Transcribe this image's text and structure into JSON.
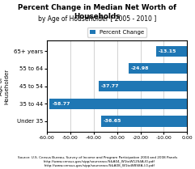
{
  "chart_data": {
    "type": "bar",
    "orientation": "horizontal",
    "title": "Percent Change in Median Net Worth of Households",
    "subtitle": "by Age of Householder [ 2005 - 2010 ]",
    "ylabel": "Age of\nHouseholder",
    "source": "Source: U.S. Census Bureau, Survey of Income and Program Participation 2004 and 2008 Panels\n   http://www.census.gov/sipp/sourceacc/S&A04_W1toW12S4A-I0.pdf\n   http://www.census.gov/sipp/sourceacc/S&A08_W1toW8S8A-I.0.pdf",
    "categories": [
      "Under 35",
      "35 to 44",
      "45 to 54",
      "55 to 64",
      "65+ years"
    ],
    "series": [
      {
        "name": "Percent Change",
        "values": [
          -36.65,
          -58.77,
          -37.77,
          -24.98,
          -13.15
        ]
      }
    ],
    "xlim": [
      -60,
      0
    ],
    "xticks": [
      {
        "value": -60,
        "label": "-60.00"
      },
      {
        "value": -50,
        "label": "-50.00"
      },
      {
        "value": -40,
        "label": "-40.00"
      },
      {
        "value": -30,
        "label": "-30.00"
      },
      {
        "value": -20,
        "label": "-20.00"
      },
      {
        "value": -10,
        "label": "-10.00"
      },
      {
        "value": 0,
        "label": "0.00"
      }
    ],
    "grid": true,
    "legend": "lower center",
    "data_labels": true
  }
}
